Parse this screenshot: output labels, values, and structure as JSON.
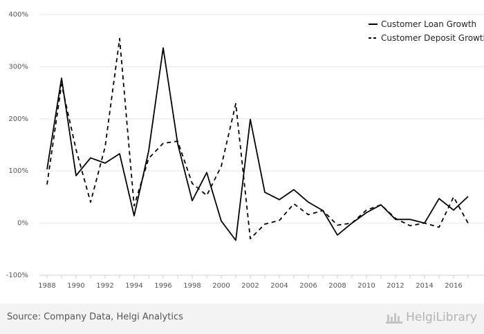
{
  "chart_data": {
    "type": "line",
    "title": "",
    "xlabel": "",
    "ylabel": "",
    "x": [
      1988,
      1989,
      1990,
      1991,
      1992,
      1993,
      1994,
      1995,
      1996,
      1997,
      1998,
      1999,
      2000,
      2001,
      2002,
      2003,
      2004,
      2005,
      2006,
      2007,
      2008,
      2009,
      2010,
      2011,
      2012,
      2013,
      2014,
      2015,
      2016,
      2017
    ],
    "xticks": [
      "1988",
      "1990",
      "1992",
      "1994",
      "1996",
      "1998",
      "2000",
      "2002",
      "2004",
      "2006",
      "2008",
      "2010",
      "2012",
      "2014",
      "2016"
    ],
    "ylim": [
      -100,
      400
    ],
    "yticks": [
      "-100%",
      "0%",
      "100%",
      "200%",
      "300%",
      "400%"
    ],
    "grid": true,
    "legend_position": "top-right",
    "series": [
      {
        "name": "Customer Loan Growth",
        "style": "solid",
        "values": [
          103,
          278,
          91,
          125,
          115,
          133,
          14,
          138,
          336,
          152,
          43,
          97,
          4,
          -33,
          199,
          59,
          45,
          64,
          40,
          24,
          -23,
          0,
          20,
          35,
          7,
          7,
          0,
          47,
          25,
          51
        ]
      },
      {
        "name": "Customer Deposit Growth",
        "style": "dashed",
        "values": [
          74,
          266,
          141,
          40,
          146,
          354,
          33,
          124,
          153,
          157,
          76,
          53,
          109,
          229,
          -30,
          -2,
          5,
          37,
          16,
          24,
          -4,
          0,
          25,
          35,
          9,
          -5,
          0,
          -8,
          50,
          0
        ]
      }
    ]
  },
  "footer": {
    "source": "Source: Company Data, Helgi Analytics",
    "brand": "HelgiLibrary"
  }
}
